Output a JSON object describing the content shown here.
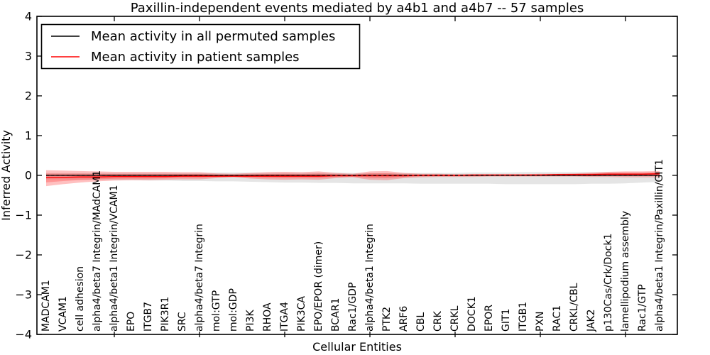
{
  "chart_data": {
    "type": "line",
    "title": "Paxillin-independent events mediated by a4b1 and a4b7 -- 57 samples",
    "xlabel": "Cellular Entities",
    "ylabel": "Inferred Activity",
    "ylim": [
      -4,
      4
    ],
    "grid": false,
    "ytick_values": [
      -4,
      -3,
      -2,
      -1,
      0,
      1,
      2,
      3,
      4
    ],
    "ytick_labels": [
      "−4",
      "−3",
      "−2",
      "−1",
      "0",
      "1",
      "2",
      "3",
      "4"
    ],
    "xtick_indices": [
      4,
      9,
      14,
      19,
      24,
      29,
      34
    ],
    "categories": [
      "MADCAM1",
      "VCAM1",
      "cell adhesion",
      "alpha4/beta7 Integrin/MAdCAM1",
      "alpha4/beta1 Integrin/VCAM1",
      "EPO",
      "ITGB7",
      "PIK3R1",
      "SRC",
      "alpha4/beta7 Integrin",
      "mol:GTP",
      "mol:GDP",
      "PI3K",
      "RHOA",
      "ITGA4",
      "PIK3CA",
      "EPO/EPOR (dimer)",
      "BCAR1",
      "Rac1/GDP",
      "alpha4/beta1 Integrin",
      "PTK2",
      "ARF6",
      "CBL",
      "CRK",
      "CRKL",
      "DOCK1",
      "EPOR",
      "GIT1",
      "ITGB1",
      "PXN",
      "RAC1",
      "CRKL/CBL",
      "JAK2",
      "p130Cas/Crk/Dock1",
      "lamellipodium assembly",
      "Rac1/GTP",
      "alpha4/beta1 Integrin/Paxillin/GIT1"
    ],
    "series": [
      {
        "name": "Mean activity in all permuted samples",
        "color": "#000000",
        "values": [
          0,
          0,
          0,
          0,
          0,
          0,
          0,
          0,
          0,
          0,
          0,
          0,
          0,
          0,
          0,
          0,
          0,
          0,
          0,
          0,
          0,
          0,
          0,
          0,
          0,
          0,
          0,
          0,
          0,
          0,
          0,
          0,
          0,
          0,
          0,
          0,
          0
        ]
      },
      {
        "name": "Mean activity in patient samples",
        "color": "#ff0000",
        "values": [
          -0.06,
          -0.05,
          -0.04,
          -0.04,
          -0.03,
          -0.03,
          -0.03,
          -0.03,
          -0.02,
          -0.02,
          -0.02,
          -0.02,
          -0.02,
          -0.02,
          -0.02,
          -0.02,
          -0.02,
          -0.01,
          -0.01,
          -0.01,
          -0.01,
          -0.01,
          0,
          0,
          0,
          0.01,
          0.01,
          0.01,
          0.01,
          0.01,
          0.02,
          0.02,
          0.02,
          0.03,
          0.03,
          0.03,
          0.04
        ]
      }
    ],
    "bands": [
      {
        "name": "permuted-std-band",
        "color": "rgba(0,0,0,0.10)",
        "top": [
          0.06,
          0.06,
          0.06,
          0.06,
          0.06,
          0.06,
          0.06,
          0.06,
          0.06,
          0.06,
          0.07,
          0.07,
          0.07,
          0.07,
          0.07,
          0.07,
          0.07,
          0.07,
          0.06,
          0.06,
          0.06,
          0.06,
          0.06,
          0.06,
          0.06,
          0.07,
          0.07,
          0.07,
          0.08,
          0.08,
          0.08,
          0.08,
          0.08,
          0.08,
          0.07,
          0.07,
          0.07
        ],
        "bottom": [
          -0.1,
          -0.1,
          -0.11,
          -0.11,
          -0.12,
          -0.12,
          -0.13,
          -0.13,
          -0.14,
          -0.14,
          -0.15,
          -0.15,
          -0.16,
          -0.17,
          -0.18,
          -0.18,
          -0.19,
          -0.19,
          -0.2,
          -0.2,
          -0.2,
          -0.2,
          -0.21,
          -0.21,
          -0.21,
          -0.21,
          -0.21,
          -0.22,
          -0.22,
          -0.22,
          -0.22,
          -0.22,
          -0.21,
          -0.21,
          -0.2,
          -0.18,
          -0.16
        ]
      },
      {
        "name": "patient-std-band",
        "color": "rgba(255,45,45,0.30)",
        "inner_factor": 0.55,
        "top": [
          0.13,
          0.12,
          0.11,
          0.1,
          0.09,
          0.09,
          0.09,
          0.09,
          0.08,
          0.08,
          0.05,
          0.04,
          0.06,
          0.08,
          0.09,
          0.08,
          0.1,
          0.06,
          0.04,
          0.1,
          0.11,
          0.06,
          0.04,
          0.04,
          0.03,
          0.03,
          0.03,
          0.03,
          0.03,
          0.04,
          0.04,
          0.05,
          0.07,
          0.09,
          0.1,
          0.1,
          0.11
        ],
        "bottom": [
          -0.27,
          -0.22,
          -0.18,
          -0.15,
          -0.13,
          -0.12,
          -0.12,
          -0.11,
          -0.1,
          -0.1,
          -0.07,
          -0.05,
          -0.08,
          -0.1,
          -0.11,
          -0.1,
          -0.11,
          -0.07,
          -0.05,
          -0.11,
          -0.12,
          -0.07,
          -0.05,
          -0.04,
          -0.04,
          -0.04,
          -0.03,
          -0.03,
          -0.03,
          -0.03,
          -0.03,
          -0.03,
          -0.04,
          -0.04,
          -0.05,
          -0.05,
          -0.05
        ]
      }
    ],
    "zero_line": {
      "value": 0,
      "style": "dashed",
      "color": "#000000"
    },
    "legend": {
      "position": "upper-left",
      "items": [
        {
          "label": "Mean activity in all permuted samples",
          "color": "#000000"
        },
        {
          "label": "Mean activity in patient samples",
          "color": "#ff0000"
        }
      ]
    }
  }
}
